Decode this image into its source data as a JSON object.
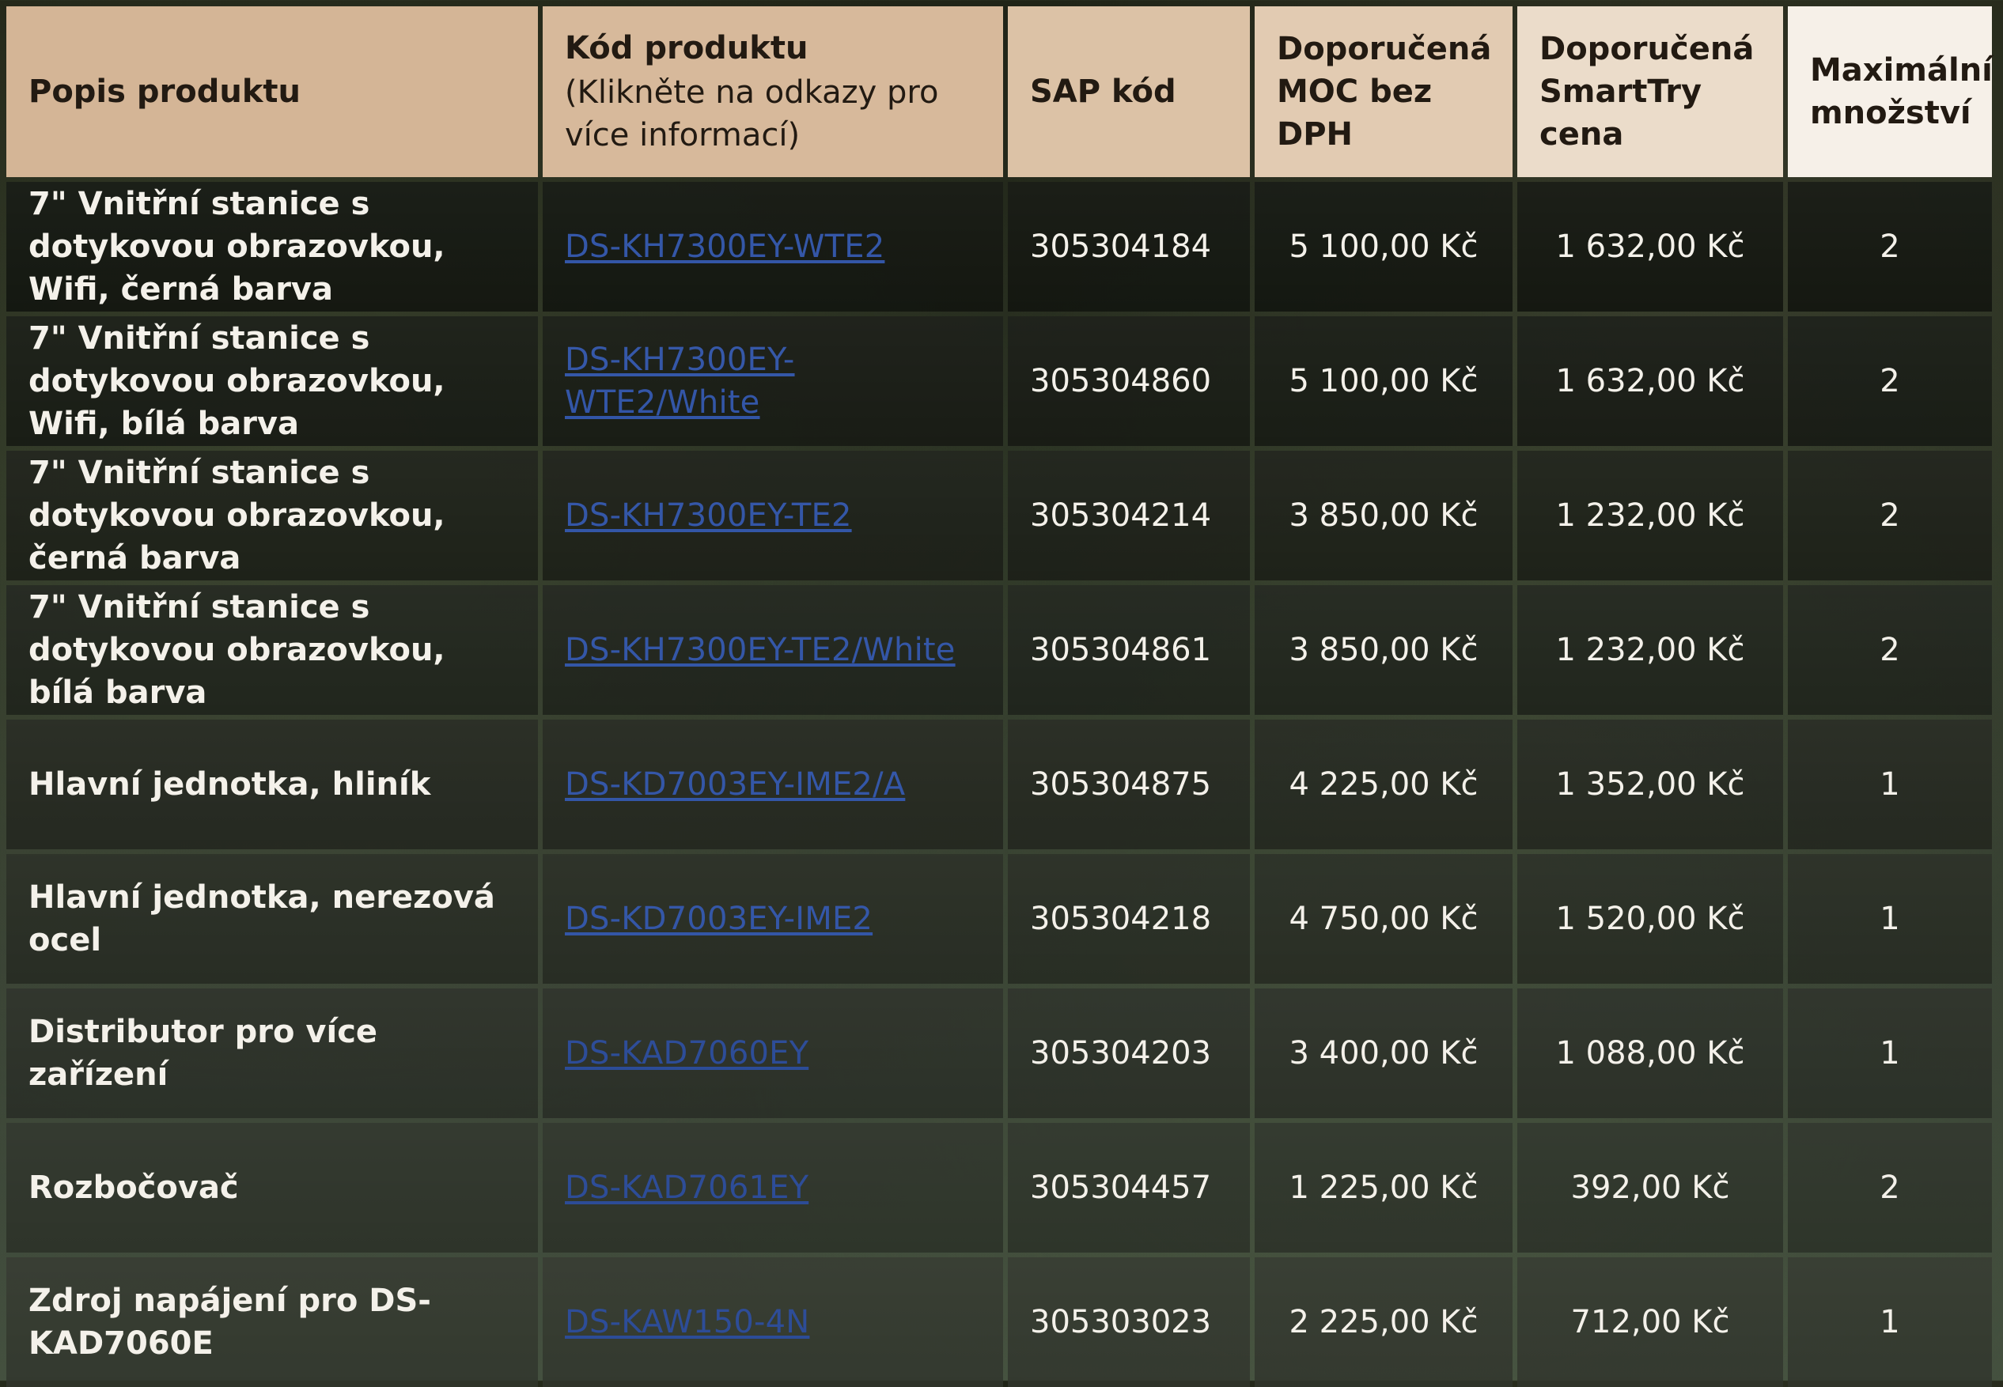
{
  "table": {
    "headers": [
      {
        "main": "Popis produktu",
        "sub": ""
      },
      {
        "main": "Kód produktu",
        "sub": "(Klikněte na odkazy pro více informací)"
      },
      {
        "main": "SAP kód",
        "sub": ""
      },
      {
        "main": "Doporučená MOC bez DPH",
        "sub": ""
      },
      {
        "main": "Doporučená SmartTry cena",
        "sub": ""
      },
      {
        "main": "Maximální množství",
        "sub": ""
      }
    ],
    "rows": [
      {
        "description": "7\" Vnitřní stanice s dotykovou obrazovkou, Wifi, černá barva",
        "product_code": "DS-KH7300EY-WTE2",
        "sap_code": "305304184",
        "moc": "5 100,00 Kč",
        "smarttry_price": "1 632,00 Kč",
        "max_qty": "2"
      },
      {
        "description": "7\" Vnitřní stanice s dotykovou obrazovkou, Wifi, bílá barva",
        "product_code": "DS-KH7300EY-WTE2/White",
        "sap_code": "305304860",
        "moc": "5 100,00 Kč",
        "smarttry_price": "1 632,00 Kč",
        "max_qty": "2"
      },
      {
        "description": "7\" Vnitřní stanice s dotykovou obrazovkou, černá barva",
        "product_code": "DS-KH7300EY-TE2",
        "sap_code": "305304214",
        "moc": "3 850,00 Kč",
        "smarttry_price": "1 232,00 Kč",
        "max_qty": "2"
      },
      {
        "description": "7\" Vnitřní stanice s dotykovou obrazovkou, bílá barva",
        "product_code": "DS-KH7300EY-TE2/White",
        "sap_code": "305304861",
        "moc": "3 850,00 Kč",
        "smarttry_price": "1 232,00 Kč",
        "max_qty": "2"
      },
      {
        "description": "Hlavní jednotka, hliník",
        "product_code": "DS-KD7003EY-IME2/A",
        "sap_code": "305304875",
        "moc": "4 225,00 Kč",
        "smarttry_price": "1 352,00 Kč",
        "max_qty": "1"
      },
      {
        "description": "Hlavní jednotka, nerezová ocel",
        "product_code": "DS-KD7003EY-IME2",
        "sap_code": "305304218",
        "moc": "4 750,00 Kč",
        "smarttry_price": "1 520,00 Kč",
        "max_qty": "1"
      },
      {
        "description": "Distributor pro více zařízení",
        "product_code": "DS-KAD7060EY",
        "sap_code": "305304203",
        "moc": "3 400,00 Kč",
        "smarttry_price": "1 088,00 Kč",
        "max_qty": "1"
      },
      {
        "description": "Rozbočovač",
        "product_code": "DS-KAD7061EY",
        "sap_code": "305304457",
        "moc": "1 225,00 Kč",
        "smarttry_price": "392,00 Kč",
        "max_qty": "2"
      },
      {
        "description": "Zdroj napájení pro DS-KAD7060E",
        "product_code": "DS-KAW150-4N",
        "sap_code": "305303023",
        "moc": "2 225,00 Kč",
        "smarttry_price": "712,00 Kč",
        "max_qty": "1"
      }
    ]
  },
  "colors": {
    "header_gradient_start": "#d4b596",
    "header_gradient_end": "#f6f0e8",
    "body_text": "#f4f1ea",
    "link": "#3154a6"
  }
}
